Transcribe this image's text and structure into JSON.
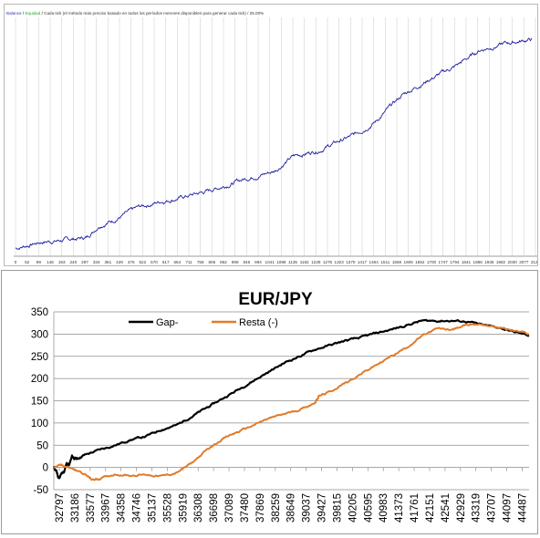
{
  "top_chart": {
    "legend": {
      "balance": "Balance",
      "sep1": " / ",
      "equity": "Equidad",
      "sep2": " / ",
      "note": "Cada tick (el método más preciso basado en todos los períodos menores disponibles para generar cada tick)  /  25.00%"
    },
    "colors": {
      "line": "#1f1f9e",
      "balance": "#3333aa",
      "equity": "#22aa22",
      "grid": "#c8c8c8",
      "text": "#333333"
    },
    "x_ticks": [
      "0",
      "52",
      "99",
      "146",
      "193",
      "240",
      "287",
      "334",
      "381",
      "429",
      "476",
      "522",
      "570",
      "617",
      "664",
      "711",
      "758",
      "805",
      "852",
      "899",
      "946",
      "994",
      "1041",
      "1088",
      "1135",
      "1182",
      "1229",
      "1276",
      "1323",
      "1370",
      "1417",
      "1464",
      "1511",
      "1558",
      "1605",
      "1652",
      "1700",
      "1747",
      "1794",
      "1841",
      "1888",
      "1935",
      "1982",
      "2030",
      "2077",
      "2124"
    ],
    "profile": [
      [
        0,
        0.02
      ],
      [
        40,
        0.05
      ],
      [
        80,
        0.06
      ],
      [
        110,
        0.07
      ],
      [
        130,
        0.13
      ],
      [
        150,
        0.15
      ],
      [
        190,
        0.21
      ],
      [
        225,
        0.24
      ],
      [
        260,
        0.26
      ],
      [
        300,
        0.29
      ],
      [
        340,
        0.33
      ],
      [
        360,
        0.35
      ],
      [
        400,
        0.38
      ],
      [
        430,
        0.45
      ],
      [
        470,
        0.48
      ],
      [
        500,
        0.52
      ],
      [
        525,
        0.55
      ],
      [
        560,
        0.62
      ],
      [
        600,
        0.74
      ],
      [
        640,
        0.81
      ],
      [
        680,
        0.87
      ],
      [
        720,
        0.95
      ],
      [
        760,
        0.98
      ],
      [
        800,
        1.0
      ]
    ]
  },
  "chart_data": {
    "type": "line",
    "title": "EUR/JPY",
    "ylim": [
      -50,
      350
    ],
    "yticks": [
      -50,
      0,
      50,
      100,
      150,
      200,
      250,
      300,
      350
    ],
    "grid": true,
    "legend_position": "top",
    "categories": [
      "32797",
      "33186",
      "33577",
      "33967",
      "34358",
      "34746",
      "35137",
      "35528",
      "35919",
      "36308",
      "36698",
      "37089",
      "37480",
      "37869",
      "38259",
      "38649",
      "39037",
      "39427",
      "39815",
      "40205",
      "40595",
      "40983",
      "41373",
      "41761",
      "42151",
      "42541",
      "42929",
      "43319",
      "43707",
      "44097",
      "44487"
    ],
    "x_range": [
      32797,
      44877
    ],
    "series": [
      {
        "name": "Gap-",
        "color": "#000000",
        "points": [
          [
            32797,
            0
          ],
          [
            32870,
            -10
          ],
          [
            32920,
            -25
          ],
          [
            32990,
            -15
          ],
          [
            33060,
            -10
          ],
          [
            33120,
            10
          ],
          [
            33186,
            5
          ],
          [
            33260,
            25
          ],
          [
            33330,
            20
          ],
          [
            33400,
            20
          ],
          [
            33577,
            28
          ],
          [
            33967,
            40
          ],
          [
            34358,
            50
          ],
          [
            34746,
            62
          ],
          [
            35137,
            70
          ],
          [
            35528,
            85
          ],
          [
            35919,
            95
          ],
          [
            36308,
            115
          ],
          [
            36698,
            135
          ],
          [
            37089,
            155
          ],
          [
            37480,
            175
          ],
          [
            37869,
            195
          ],
          [
            38259,
            215
          ],
          [
            38649,
            235
          ],
          [
            39037,
            250
          ],
          [
            39427,
            265
          ],
          [
            39815,
            275
          ],
          [
            40205,
            285
          ],
          [
            40595,
            292
          ],
          [
            40983,
            302
          ],
          [
            41373,
            310
          ],
          [
            41761,
            320
          ],
          [
            42151,
            330
          ],
          [
            42541,
            330
          ],
          [
            42929,
            330
          ],
          [
            43319,
            328
          ],
          [
            43707,
            320
          ],
          [
            44097,
            315
          ],
          [
            44487,
            305
          ],
          [
            44877,
            297
          ]
        ]
      },
      {
        "name": "Resta (-)",
        "color": "#e07b2a",
        "points": [
          [
            32797,
            0
          ],
          [
            32990,
            5
          ],
          [
            33186,
            0
          ],
          [
            33577,
            -15
          ],
          [
            33770,
            -28
          ],
          [
            33967,
            -25
          ],
          [
            34358,
            -15
          ],
          [
            34746,
            -18
          ],
          [
            35137,
            -16
          ],
          [
            35528,
            -20
          ],
          [
            35919,
            -12
          ],
          [
            36308,
            10
          ],
          [
            36698,
            40
          ],
          [
            37089,
            65
          ],
          [
            37480,
            80
          ],
          [
            37869,
            95
          ],
          [
            38259,
            110
          ],
          [
            38649,
            120
          ],
          [
            39037,
            130
          ],
          [
            39427,
            145
          ],
          [
            39530,
            160
          ],
          [
            39815,
            170
          ],
          [
            40205,
            190
          ],
          [
            40595,
            210
          ],
          [
            40983,
            230
          ],
          [
            41373,
            250
          ],
          [
            41761,
            270
          ],
          [
            42151,
            295
          ],
          [
            42541,
            312
          ],
          [
            42929,
            310
          ],
          [
            43319,
            322
          ],
          [
            43707,
            322
          ],
          [
            44097,
            315
          ],
          [
            44487,
            308
          ],
          [
            44877,
            300
          ]
        ]
      }
    ]
  }
}
